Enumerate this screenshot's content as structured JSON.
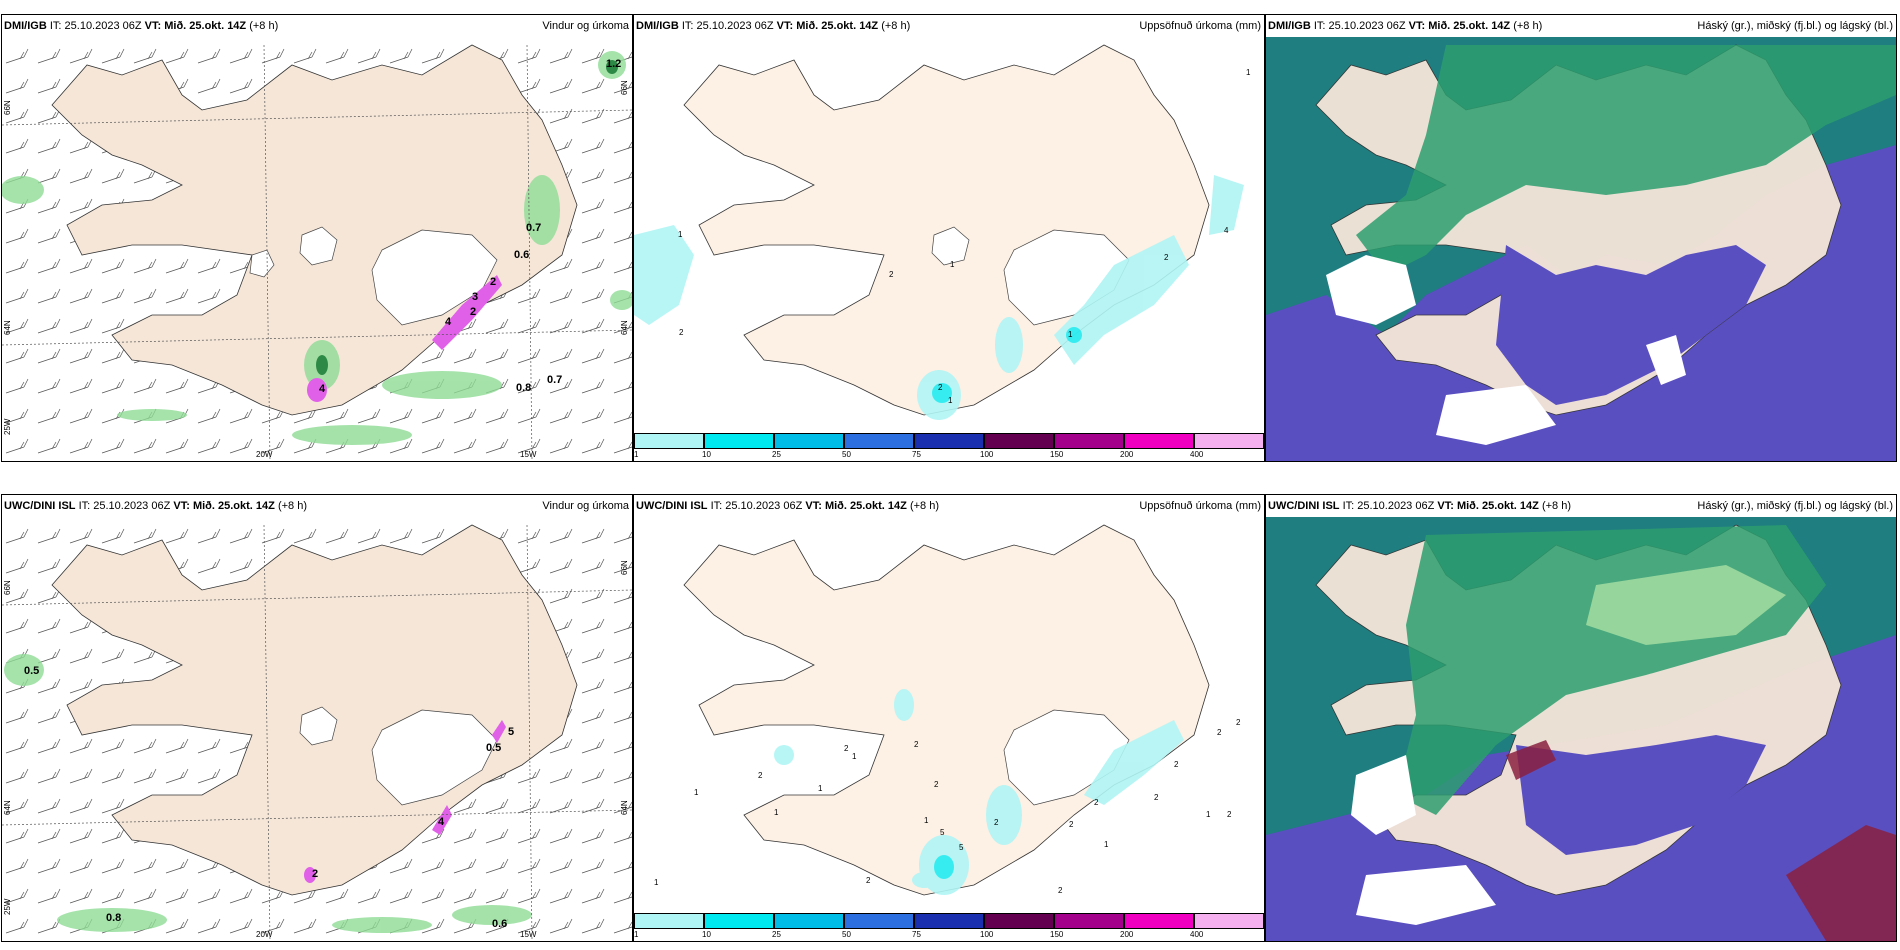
{
  "panels": [
    {
      "model": "DMI/IGB",
      "it_label": "IT:",
      "it": "25.10.2023 06Z",
      "vt_label": "VT:",
      "vt": "Mið. 25.okt. 14Z",
      "lead": "(+8 h)",
      "product": "Vindur og úrkoma",
      "precip_values": [
        "1.2",
        "0.7",
        "0.6",
        "0.8",
        "0.7",
        "4",
        "2",
        "4",
        "3",
        "2"
      ],
      "grid_labels": {
        "lat_a": "66N",
        "lat_b": "64N",
        "lon_a": "20W",
        "lon_b": "15W",
        "left_a": "66N",
        "left_b": "64N",
        "corner": "25W"
      }
    },
    {
      "model": "DMI/IGB",
      "it_label": "IT:",
      "it": "25.10.2023 06Z",
      "vt_label": "VT:",
      "vt": "Mið. 25.okt. 14Z",
      "lead": "(+8 h)",
      "product": "Uppsöfnuð úrkoma (mm)",
      "contour_values": [
        "1",
        "4",
        "2",
        "2",
        "1",
        "2",
        "1",
        "2",
        "1",
        "1"
      ]
    },
    {
      "model": "DMI/IGB",
      "it_label": "IT:",
      "it": "25.10.2023 06Z",
      "vt_label": "VT:",
      "vt": "Mið. 25.okt. 14Z",
      "lead": "(+8 h)",
      "product": "Háský (gr.), miðský (fj.bl.) og lágský (bl.)"
    },
    {
      "model": "UWC/DINI ISL",
      "it_label": "IT:",
      "it": "25.10.2023 06Z",
      "vt_label": "VT:",
      "vt": "Mið. 25.okt. 14Z",
      "lead": "(+8 h)",
      "product": "Vindur og úrkoma",
      "precip_values": [
        "0.5",
        "0.8",
        "0.6",
        "5",
        "0.5",
        "2",
        "4"
      ],
      "grid_labels": {
        "lat_a": "66N",
        "lat_b": "64N",
        "lon_a": "20W",
        "lon_b": "15W",
        "left_a": "66N",
        "left_b": "64N",
        "corner": "25W"
      }
    },
    {
      "model": "UWC/DINI ISL",
      "it_label": "IT:",
      "it": "25.10.2023 06Z",
      "vt_label": "VT:",
      "vt": "Mið. 25.okt. 14Z",
      "lead": "(+8 h)",
      "product": "Uppsöfnuð úrkoma (mm)",
      "contour_values": [
        "2",
        "2",
        "2",
        "1",
        "1",
        "1",
        "2",
        "1",
        "2",
        "5",
        "2",
        "2",
        "2",
        "1",
        "2",
        "2",
        "2",
        "1",
        "2",
        "2",
        "1",
        "1",
        "5",
        "2"
      ]
    },
    {
      "model": "UWC/DINI ISL",
      "it_label": "IT:",
      "it": "25.10.2023 06Z",
      "vt_label": "VT:",
      "vt": "Mið. 25.okt. 14Z",
      "lead": "(+8 h)",
      "product": "Háský (gr.), miðský (fj.bl.) og lágský (bl.)"
    }
  ],
  "legend": {
    "ticks": [
      "1",
      "10",
      "25",
      "50",
      "75",
      "100",
      "150",
      "200",
      "400"
    ],
    "colors": [
      "#b0f5f5",
      "#00e8f0",
      "#00bde8",
      "#2c6fe0",
      "#1a2fb0",
      "#640050",
      "#a3008c",
      "#f000c0",
      "#f5b0f0"
    ]
  },
  "colors": {
    "land": "#f5e6d8",
    "land_light": "#fdf0e4",
    "sea": "#ffffff",
    "precip_green": "#8fdc96",
    "precip_dark": "#2d8a46",
    "precip_magenta": "#e060e8",
    "high_cloud": "#2d9e6f",
    "mid_cloud": "#1f7e80",
    "low_cloud": "#5a4fc0",
    "ice_white": "#ffffff"
  }
}
